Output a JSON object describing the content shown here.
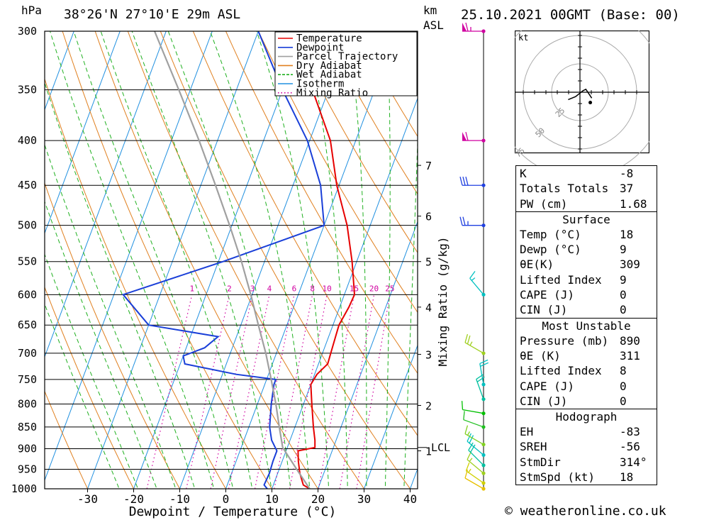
{
  "header": {
    "pressure_unit": "hPa",
    "location": "38°26'N  27°10'E  29m  ASL",
    "km_label": "km",
    "asl_label": "ASL",
    "datetime": "25.10.2021  00GMT  (Base: 00)"
  },
  "chart_data": {
    "type": "line",
    "subtype": "skew-T log-P diagram",
    "xlabel": "Dewpoint / Temperature (°C)",
    "ylabel": "hPa",
    "x_ticks": [
      -30,
      -20,
      -10,
      0,
      10,
      20,
      30,
      40
    ],
    "pressure_levels": [
      300,
      350,
      400,
      450,
      500,
      550,
      600,
      650,
      700,
      750,
      800,
      850,
      900,
      950,
      1000
    ],
    "xlim_at_1000hPa": [
      -40,
      40
    ],
    "ylim": [
      1000,
      300
    ],
    "y_scale": "log",
    "km_ticks": [
      1,
      2,
      3,
      4,
      5,
      6,
      7
    ],
    "lcl_label": "LCL",
    "lcl_pressure": 897,
    "mixing_ratio_axis_label": "Mixing Ratio (g/kg)",
    "mixing_ratio_values": [
      "1",
      "2",
      "3",
      "4",
      "6",
      "8",
      "10",
      "15",
      "20",
      "25"
    ],
    "legend_position": "top-right",
    "legend": [
      {
        "name": "Temperature",
        "color": "#e60000",
        "style": "solid"
      },
      {
        "name": "Dewpoint",
        "color": "#1a3fd8",
        "style": "solid"
      },
      {
        "name": "Parcel Trajectory",
        "color": "#a0a0a0",
        "style": "solid"
      },
      {
        "name": "Dry Adiabat",
        "color": "#e08020",
        "style": "solid"
      },
      {
        "name": "Wet Adiabat",
        "color": "#20b020",
        "style": "dashed"
      },
      {
        "name": "Isotherm",
        "color": "#2090e0",
        "style": "solid"
      },
      {
        "name": "Mixing Ratio",
        "color": "#d000a0",
        "style": "dotted"
      }
    ],
    "series": [
      {
        "name": "Temperature",
        "color": "#e60000",
        "points": [
          [
            1000,
            18.2
          ],
          [
            990,
            16.5
          ],
          [
            960,
            14.8
          ],
          [
            930,
            13.5
          ],
          [
            905,
            12.6
          ],
          [
            897,
            16.0
          ],
          [
            880,
            15.4
          ],
          [
            850,
            14.0
          ],
          [
            800,
            11.8
          ],
          [
            760,
            10.0
          ],
          [
            740,
            10.5
          ],
          [
            720,
            12.0
          ],
          [
            700,
            11.8
          ],
          [
            670,
            11.5
          ],
          [
            650,
            11.3
          ],
          [
            620,
            12.0
          ],
          [
            600,
            12.2
          ],
          [
            550,
            9.0
          ],
          [
            500,
            5.0
          ],
          [
            450,
            -0.5
          ],
          [
            400,
            -5.5
          ],
          [
            350,
            -13.5
          ],
          [
            300,
            -21.0
          ]
        ]
      },
      {
        "name": "Dewpoint",
        "color": "#1a3fd8",
        "points": [
          [
            1000,
            9.0
          ],
          [
            990,
            8.0
          ],
          [
            960,
            8.2
          ],
          [
            930,
            8.0
          ],
          [
            905,
            8.0
          ],
          [
            880,
            6.0
          ],
          [
            850,
            4.5
          ],
          [
            800,
            3.0
          ],
          [
            760,
            2.0
          ],
          [
            750,
            2.0
          ],
          [
            740,
            -7.0
          ],
          [
            720,
            -19.0
          ],
          [
            705,
            -20.0
          ],
          [
            690,
            -16.0
          ],
          [
            670,
            -14.0
          ],
          [
            650,
            -30.0
          ],
          [
            600,
            -38.0
          ],
          [
            550,
            -19.0
          ],
          [
            500,
            0.0
          ],
          [
            450,
            -4.0
          ],
          [
            400,
            -10.5
          ],
          [
            350,
            -20.0
          ],
          [
            300,
            -30.0
          ]
        ]
      },
      {
        "name": "Parcel Trajectory",
        "color": "#a0a0a0",
        "points": [
          [
            1000,
            18.2
          ],
          [
            950,
            13.8
          ],
          [
            897,
            9.0
          ],
          [
            850,
            6.6
          ],
          [
            800,
            4.0
          ],
          [
            750,
            1.0
          ],
          [
            700,
            -2.3
          ],
          [
            650,
            -6.2
          ],
          [
            600,
            -10.3
          ],
          [
            550,
            -15.0
          ],
          [
            500,
            -20.5
          ],
          [
            450,
            -26.8
          ],
          [
            400,
            -34.0
          ],
          [
            350,
            -42.5
          ],
          [
            300,
            -52.5
          ]
        ]
      }
    ],
    "wind_barbs": [
      {
        "p": 1000,
        "dir": 300,
        "spd": 10,
        "color": "#e8c000"
      },
      {
        "p": 985,
        "dir": 305,
        "spd": 15,
        "color": "#d0d000"
      },
      {
        "p": 960,
        "dir": 310,
        "spd": 15,
        "color": "#a0d020"
      },
      {
        "p": 940,
        "dir": 315,
        "spd": 20,
        "color": "#00c0a0"
      },
      {
        "p": 915,
        "dir": 310,
        "spd": 20,
        "color": "#00c0c0"
      },
      {
        "p": 890,
        "dir": 300,
        "spd": 15,
        "color": "#80d020"
      },
      {
        "p": 850,
        "dir": 290,
        "spd": 10,
        "color": "#20c020"
      },
      {
        "p": 820,
        "dir": 280,
        "spd": 10,
        "color": "#00c000"
      },
      {
        "p": 790,
        "dir": 340,
        "spd": 20,
        "color": "#00c0a0"
      },
      {
        "p": 760,
        "dir": 350,
        "spd": 20,
        "color": "#00c0c0"
      },
      {
        "p": 700,
        "dir": 300,
        "spd": 25,
        "color": "#a0d020"
      },
      {
        "p": 600,
        "dir": 320,
        "spd": 15,
        "color": "#00c0c0"
      },
      {
        "p": 500,
        "dir": 270,
        "spd": 25,
        "color": "#2040e0"
      },
      {
        "p": 450,
        "dir": 270,
        "spd": 30,
        "color": "#2040e0"
      },
      {
        "p": 400,
        "dir": 270,
        "spd": 60,
        "color": "#d000a0"
      },
      {
        "p": 300,
        "dir": 270,
        "spd": 65,
        "color": "#d000a0"
      }
    ]
  },
  "hodograph": {
    "unit": "kt",
    "ring_labels": [
      "25",
      "50",
      "75"
    ],
    "points_uv": [
      [
        -8,
        -5
      ],
      [
        -3,
        -3
      ],
      [
        2,
        1
      ],
      [
        4,
        2
      ],
      [
        6,
        -1
      ],
      [
        8,
        -4
      ]
    ],
    "storm_motion_uv": [
      7,
      -7
    ]
  },
  "stats": {
    "indices": [
      {
        "label": "K",
        "value": "-8"
      },
      {
        "label": "Totals Totals",
        "value": "37"
      },
      {
        "label": "PW (cm)",
        "value": "1.68"
      }
    ],
    "surface": {
      "title": "Surface",
      "rows": [
        {
          "label": "Temp (°C)",
          "value": "18"
        },
        {
          "label": "Dewp (°C)",
          "value": "9"
        },
        {
          "label": "θE(K)",
          "value": "309"
        },
        {
          "label": "Lifted Index",
          "value": "9"
        },
        {
          "label": "CAPE (J)",
          "value": "0"
        },
        {
          "label": "CIN (J)",
          "value": "0"
        }
      ]
    },
    "most_unstable": {
      "title": "Most Unstable",
      "rows": [
        {
          "label": "Pressure (mb)",
          "value": "890"
        },
        {
          "label": "θE (K)",
          "value": "311"
        },
        {
          "label": "Lifted Index",
          "value": "8"
        },
        {
          "label": "CAPE (J)",
          "value": "0"
        },
        {
          "label": "CIN (J)",
          "value": "0"
        }
      ]
    },
    "hodograph": {
      "title": "Hodograph",
      "rows": [
        {
          "label": "EH",
          "value": "-83"
        },
        {
          "label": "SREH",
          "value": "-56"
        },
        {
          "label": "StmDir",
          "value": "314°"
        },
        {
          "label": "StmSpd (kt)",
          "value": "18"
        }
      ]
    }
  },
  "footer": {
    "credit": "© weatheronline.co.uk"
  },
  "colors": {
    "temperature": "#e60000",
    "dewpoint": "#1a3fd8",
    "parcel": "#a0a0a0",
    "dry_adiabat": "#e08020",
    "wet_adiabat": "#20b020",
    "isotherm": "#2090e0",
    "mixing_ratio": "#d000a0"
  }
}
